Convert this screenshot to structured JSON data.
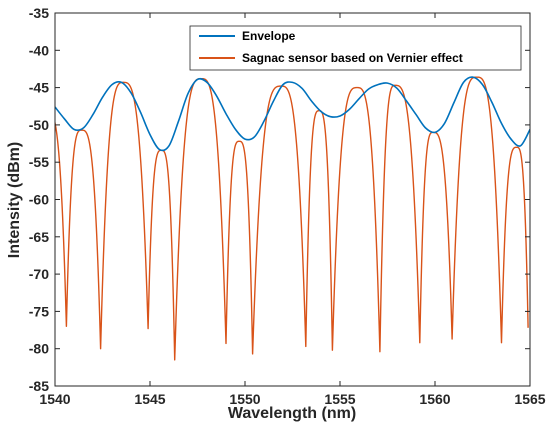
{
  "chart_data": {
    "type": "line",
    "title": "",
    "xlabel": "Wavelength (nm)",
    "ylabel": "Intensity (dBm)",
    "xlim": [
      1540,
      1565
    ],
    "ylim": [
      -85,
      -35
    ],
    "x_ticks": [
      1540,
      1545,
      1550,
      1555,
      1560,
      1565
    ],
    "y_ticks": [
      -35,
      -40,
      -45,
      -50,
      -55,
      -60,
      -65,
      -70,
      -75,
      -80,
      -85
    ],
    "grid": false,
    "legend_position": "top-right",
    "series": [
      {
        "name": "Envelope",
        "color": "#0072BD",
        "x": [
          1540.0,
          1540.5,
          1541.0,
          1541.5,
          1542.0,
          1542.5,
          1543.0,
          1543.5,
          1544.0,
          1544.5,
          1545.0,
          1545.5,
          1546.0,
          1546.5,
          1547.0,
          1547.5,
          1548.0,
          1548.5,
          1549.0,
          1549.5,
          1550.0,
          1550.5,
          1551.0,
          1551.5,
          1552.0,
          1552.5,
          1553.0,
          1553.5,
          1554.0,
          1554.5,
          1555.0,
          1555.5,
          1556.0,
          1556.5,
          1557.0,
          1557.5,
          1558.0,
          1558.5,
          1559.0,
          1559.5,
          1560.0,
          1560.5,
          1561.0,
          1561.5,
          1562.0,
          1562.5,
          1563.0,
          1563.5,
          1564.0,
          1564.5,
          1565.0
        ],
        "y": [
          -47.6,
          -49.2,
          -50.6,
          -50.4,
          -48.6,
          -46.3,
          -44.6,
          -44.3,
          -45.7,
          -48.3,
          -51.3,
          -53.3,
          -52.8,
          -49.5,
          -45.8,
          -43.9,
          -44.3,
          -46.1,
          -48.5,
          -50.6,
          -51.9,
          -51.6,
          -49.5,
          -46.8,
          -44.6,
          -44.3,
          -45.1,
          -46.8,
          -48.2,
          -48.9,
          -48.8,
          -47.9,
          -46.5,
          -45.2,
          -44.6,
          -44.4,
          -45.1,
          -46.8,
          -48.6,
          -50.4,
          -51.0,
          -49.8,
          -47.0,
          -44.3,
          -43.6,
          -44.6,
          -47.0,
          -49.8,
          -51.9,
          -52.8,
          -50.6
        ]
      },
      {
        "name": "Sagnac sensor based on Vernier effect",
        "color": "#D95319",
        "fringe_peaks": [
          {
            "x": 1539.6,
            "y": -48.2
          },
          {
            "x": 1541.4,
            "y": -50.7
          },
          {
            "x": 1543.6,
            "y": -44.3
          },
          {
            "x": 1545.6,
            "y": -53.4
          },
          {
            "x": 1547.7,
            "y": -43.8
          },
          {
            "x": 1549.7,
            "y": -52.2
          },
          {
            "x": 1551.9,
            "y": -44.8
          },
          {
            "x": 1553.9,
            "y": -48.1
          },
          {
            "x": 1555.9,
            "y": -45.0
          },
          {
            "x": 1557.9,
            "y": -44.7
          },
          {
            "x": 1559.9,
            "y": -51.0
          },
          {
            "x": 1562.2,
            "y": -43.6
          },
          {
            "x": 1564.3,
            "y": -53.0
          }
        ],
        "fringe_dips": [
          {
            "x": 1540.6,
            "y": -77.0
          },
          {
            "x": 1542.4,
            "y": -80.0
          },
          {
            "x": 1544.9,
            "y": -77.3
          },
          {
            "x": 1546.3,
            "y": -81.5
          },
          {
            "x": 1549.0,
            "y": -79.3
          },
          {
            "x": 1550.4,
            "y": -80.7
          },
          {
            "x": 1553.2,
            "y": -79.7
          },
          {
            "x": 1554.6,
            "y": -80.2
          },
          {
            "x": 1557.1,
            "y": -80.4
          },
          {
            "x": 1559.2,
            "y": -79.2
          },
          {
            "x": 1560.9,
            "y": -78.7
          },
          {
            "x": 1563.5,
            "y": -79.2
          },
          {
            "x": 1564.9,
            "y": -77.2
          }
        ]
      }
    ]
  }
}
